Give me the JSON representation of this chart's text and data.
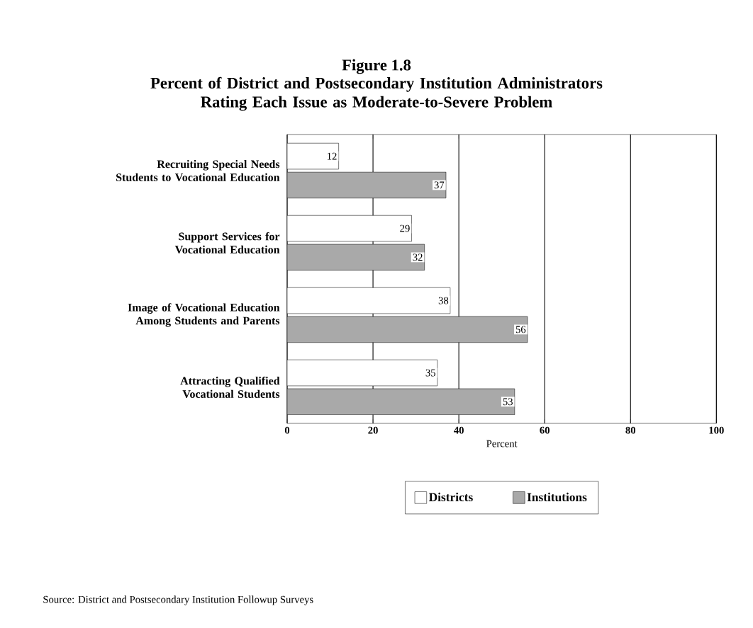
{
  "chart_data": {
    "type": "bar",
    "orientation": "horizontal",
    "title": "Figure 1.8",
    "subtitle": "Percent of District and Postsecondary Institution Administrators Rating Each Issue as Moderate-to-Severe Problem",
    "categories": [
      "Recruiting Special Needs Students to Vocational Education",
      "Support Services for Vocational Education",
      "Image of Vocational Education Among Students and Parents",
      "Attracting Qualified Vocational Students"
    ],
    "series": [
      {
        "name": "Districts",
        "color": "#ffffff",
        "values": [
          12,
          29,
          38,
          35
        ]
      },
      {
        "name": "Institutions",
        "color": "#a9a9a9",
        "values": [
          37,
          32,
          56,
          53
        ]
      }
    ],
    "xlabel": "Percent",
    "xlim": [
      0,
      100
    ],
    "xticks": [
      0,
      20,
      40,
      60,
      80,
      100
    ],
    "grid": "x",
    "legend": "bottom",
    "data_labels": true,
    "annotations": [
      "Source: District and Postsecondary Institution Followup Surveys"
    ]
  }
}
